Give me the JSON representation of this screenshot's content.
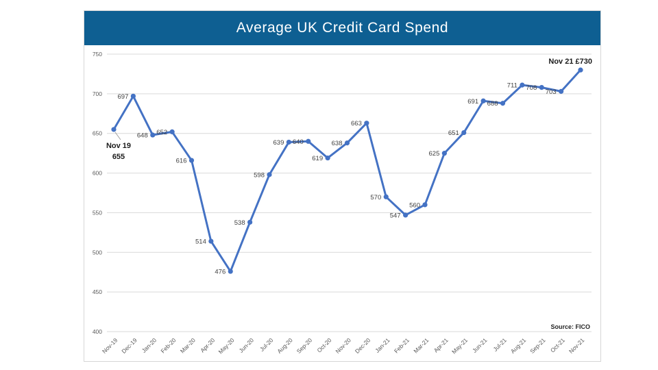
{
  "header": {
    "title": "Average UK Credit Card Spend",
    "background_color": "#0e5f92",
    "text_color": "#ffffff"
  },
  "chart_data": {
    "type": "line",
    "title": "Average UK Credit Card Spend",
    "categories": [
      "Nov-19",
      "Dec-19",
      "Jan-20",
      "Feb-20",
      "Mar-20",
      "Apr-20",
      "May-20",
      "Jun-20",
      "Jul-20",
      "Aug-20",
      "Sep-20",
      "Oct-20",
      "Nov-20",
      "Dec-20",
      "Jan-21",
      "Feb-21",
      "Mar-21",
      "Apr-21",
      "May-21",
      "Jun-21",
      "Jul-21",
      "Aug-21",
      "Sep-21",
      "Oct-21",
      "Nov-21"
    ],
    "values": [
      655,
      697,
      648,
      652,
      616,
      514,
      476,
      538,
      598,
      639,
      640,
      619,
      638,
      663,
      570,
      547,
      560,
      625,
      651,
      691,
      688,
      711,
      708,
      703,
      730
    ],
    "xlabel": "",
    "ylabel": "",
    "ylim": [
      400,
      750
    ],
    "yticks": [
      400,
      450,
      500,
      550,
      600,
      650,
      700,
      750
    ],
    "grid": "horizontal",
    "legend": "none",
    "line_color": "#4472c4",
    "grid_color": "#d9d9d9",
    "axis_text_color": "#595959",
    "data_label_color": "#404040",
    "first_point_callout": {
      "line1": "Nov 19",
      "line2": "655"
    },
    "last_point_label": "Nov 21 £730",
    "source_note": "Source: FICO"
  }
}
